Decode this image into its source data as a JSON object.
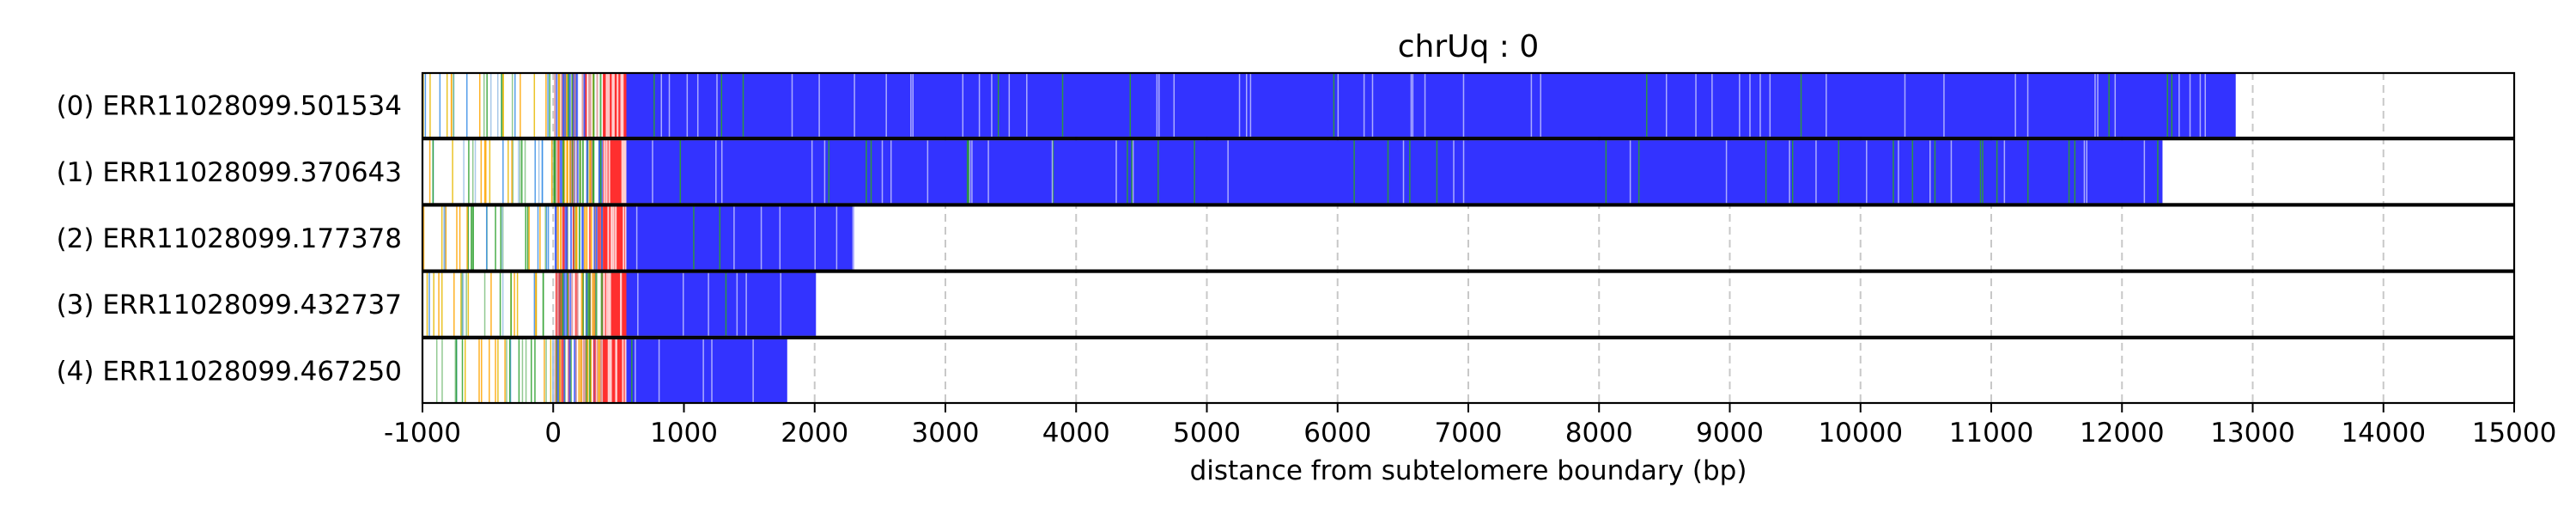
{
  "chart_data": {
    "type": "bar",
    "title": "chrUq : 0",
    "xlabel": "distance from subtelomere boundary (bp)",
    "ylabel": "",
    "xlim": [
      -1000,
      15000
    ],
    "xticks": [
      -1000,
      0,
      1000,
      2000,
      3000,
      4000,
      5000,
      6000,
      7000,
      8000,
      9000,
      10000,
      11000,
      12000,
      13000,
      14000,
      15000
    ],
    "grid": "vertical dashed",
    "colors": {
      "blue": "#3333ff",
      "red": "#ff2f2f",
      "green": "#2ca02c",
      "orange": "#ffa500",
      "background": "#ffffff",
      "grid": "#c8c8c8"
    },
    "reads": [
      {
        "label": "(0) ERR11028099.501534",
        "start": -1000,
        "end": 12870
      },
      {
        "label": "(1) ERR11028099.370643",
        "start": -1000,
        "end": 12310
      },
      {
        "label": "(2) ERR11028099.177378",
        "start": -1000,
        "end": 2300
      },
      {
        "label": "(3) ERR11028099.432737",
        "start": -1000,
        "end": 2010
      },
      {
        "label": "(4) ERR11028099.467250",
        "start": -900,
        "end": 1790
      }
    ],
    "segments": {
      "telomere_start": 0,
      "subtelomere_red_start": 380,
      "repeat_blue_start": 560
    }
  }
}
